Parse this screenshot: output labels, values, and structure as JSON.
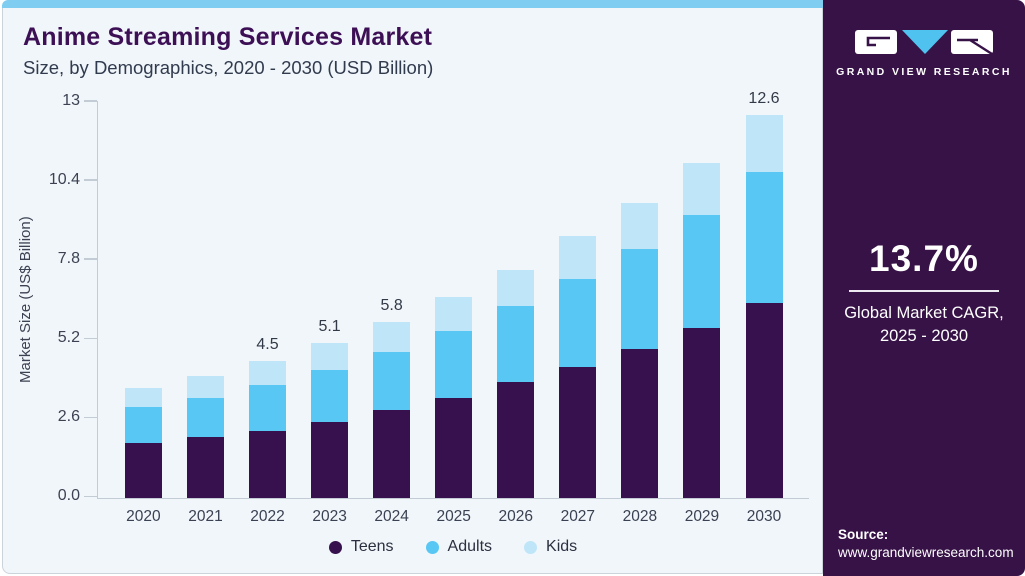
{
  "header": {
    "title": "Anime Streaming Services Market",
    "subtitle": "Size, by Demographics, 2020 - 2030 (USD Billion)"
  },
  "panel": {
    "brand": "GRAND VIEW RESEARCH",
    "cagr_value": "13.7%",
    "cagr_label_line1": "Global Market CAGR,",
    "cagr_label_line2": "2025 - 2030",
    "source_label": "Source:",
    "source_url": "www.grandviewresearch.com",
    "bg_color": "#371247",
    "accent_blue": "#4fc2ef"
  },
  "colors": {
    "strip": "#7fcdf1",
    "card_bg": "#f1f6fa",
    "card_border": "#cbd3db",
    "axis": "#c3ccd5",
    "title_text": "#3d1056",
    "subtitle_text": "#313b4e",
    "tick_text": "#3c4252"
  },
  "chart_data": {
    "type": "bar",
    "stacked": true,
    "title": "Anime Streaming Services Market Size, by Demographics, 2020 - 2030 (USD Billion)",
    "xlabel": "",
    "ylabel": "Market Size (US$ Billion)",
    "ylim": [
      0,
      13
    ],
    "grid": false,
    "legend_position": "bottom",
    "categories": [
      "2020",
      "2021",
      "2022",
      "2023",
      "2024",
      "2025",
      "2026",
      "2027",
      "2028",
      "2029",
      "2030"
    ],
    "series": [
      {
        "name": "Teens",
        "color": "#36114e",
        "values": [
          1.8,
          2.0,
          2.2,
          2.5,
          2.9,
          3.3,
          3.8,
          4.3,
          4.9,
          5.6,
          6.4
        ]
      },
      {
        "name": "Adults",
        "color": "#58c7f3",
        "values": [
          1.2,
          1.3,
          1.5,
          1.7,
          1.9,
          2.2,
          2.5,
          2.9,
          3.3,
          3.7,
          4.3
        ]
      },
      {
        "name": "Kids",
        "color": "#bfe5f8",
        "values": [
          0.6,
          0.7,
          0.8,
          0.9,
          1.0,
          1.1,
          1.2,
          1.4,
          1.5,
          1.7,
          1.9
        ]
      }
    ],
    "totals": [
      3.6,
      4.0,
      4.5,
      5.1,
      5.8,
      6.6,
      7.5,
      8.6,
      9.7,
      11.0,
      12.6
    ],
    "total_labels": {
      "2022": "4.5",
      "2023": "5.1",
      "2024": "5.8",
      "2030": "12.6"
    },
    "y_ticks": [
      {
        "label": "13",
        "value": 13
      },
      {
        "label": "10.4",
        "value": 10.4
      },
      {
        "label": "7.8",
        "value": 7.8
      },
      {
        "label": "5.2",
        "value": 5.2
      },
      {
        "label": "2.6",
        "value": 2.6
      },
      {
        "label": "0.0",
        "value": 0
      }
    ]
  }
}
